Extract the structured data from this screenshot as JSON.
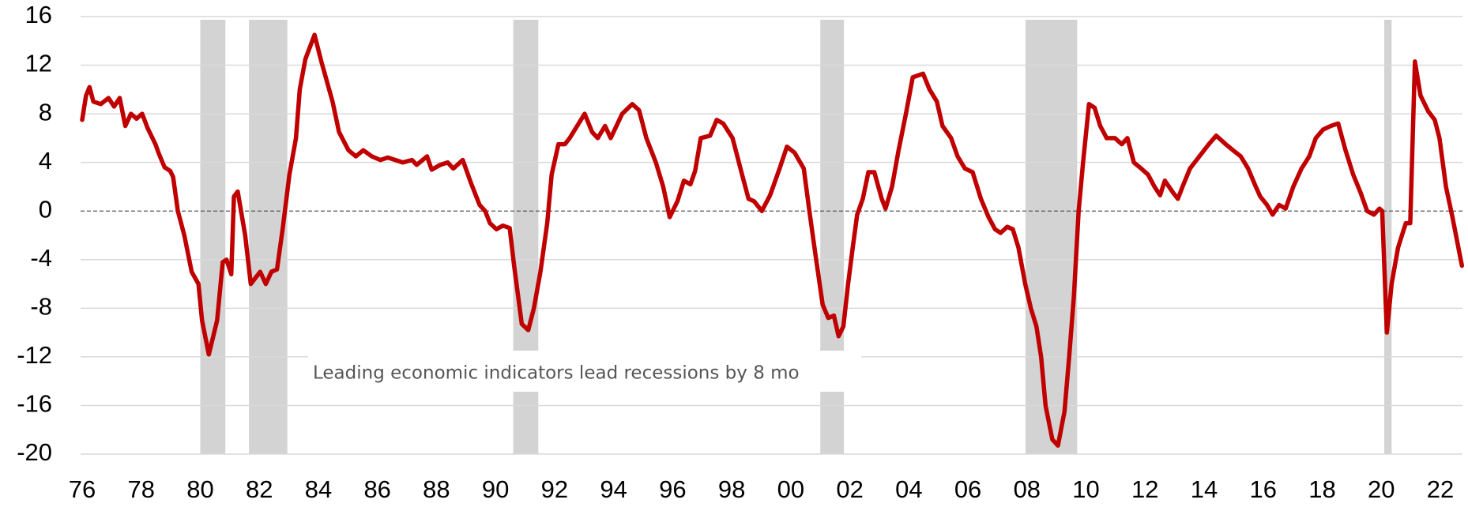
{
  "chart_data": {
    "type": "line",
    "annotation": "Leading economic indicators lead recessions by 8 mo",
    "color": "#c00000",
    "shade_color": "#d3d3d3",
    "grid": true,
    "xlim": [
      1976,
      2022.75
    ],
    "ylim": [
      -20,
      16
    ],
    "yticks": [
      -20,
      -16,
      -12,
      -8,
      -4,
      0,
      4,
      8,
      12,
      16
    ],
    "xticks": [
      {
        "value": 1976,
        "label": "76"
      },
      {
        "value": 1978,
        "label": "78"
      },
      {
        "value": 1980,
        "label": "80"
      },
      {
        "value": 1982,
        "label": "82"
      },
      {
        "value": 1984,
        "label": "84"
      },
      {
        "value": 1986,
        "label": "86"
      },
      {
        "value": 1988,
        "label": "88"
      },
      {
        "value": 1990,
        "label": "90"
      },
      {
        "value": 1992,
        "label": "92"
      },
      {
        "value": 1994,
        "label": "94"
      },
      {
        "value": 1996,
        "label": "96"
      },
      {
        "value": 1998,
        "label": "98"
      },
      {
        "value": 2000,
        "label": "00"
      },
      {
        "value": 2002,
        "label": "02"
      },
      {
        "value": 2004,
        "label": "04"
      },
      {
        "value": 2006,
        "label": "06"
      },
      {
        "value": 2008,
        "label": "08"
      },
      {
        "value": 2010,
        "label": "10"
      },
      {
        "value": 2012,
        "label": "12"
      },
      {
        "value": 2014,
        "label": "14"
      },
      {
        "value": 2016,
        "label": "16"
      },
      {
        "value": 2018,
        "label": "18"
      },
      {
        "value": 2020,
        "label": "20"
      },
      {
        "value": 2022,
        "label": "22"
      }
    ],
    "recessions": [
      [
        1980.0,
        1980.85
      ],
      [
        1981.65,
        1982.95
      ],
      [
        1990.6,
        1991.45
      ],
      [
        2001.0,
        2001.8
      ],
      [
        2007.95,
        2009.7
      ],
      [
        2020.1,
        2020.35
      ]
    ],
    "x": [
      1976.0,
      1976.13,
      1976.25,
      1976.38,
      1976.63,
      1976.89,
      1977.08,
      1977.27,
      1977.46,
      1977.65,
      1977.84,
      1978.03,
      1978.22,
      1978.48,
      1978.6,
      1978.79,
      1978.98,
      1979.08,
      1979.24,
      1979.46,
      1979.71,
      1979.94,
      1980.06,
      1980.29,
      1980.57,
      1980.76,
      1980.89,
      1981.05,
      1981.14,
      1981.27,
      1981.52,
      1981.71,
      1982.03,
      1982.22,
      1982.41,
      1982.6,
      1982.79,
      1983.02,
      1983.24,
      1983.37,
      1983.56,
      1983.87,
      1984.1,
      1984.48,
      1984.7,
      1985.02,
      1985.27,
      1985.52,
      1985.81,
      1986.1,
      1986.35,
      1986.86,
      1987.17,
      1987.33,
      1987.68,
      1987.84,
      1988.13,
      1988.38,
      1988.57,
      1988.89,
      1989.17,
      1989.46,
      1989.65,
      1989.81,
      1990.03,
      1990.25,
      1990.48,
      1990.63,
      1990.89,
      1991.11,
      1991.3,
      1991.52,
      1991.75,
      1991.9,
      1992.13,
      1992.35,
      1992.51,
      1993.02,
      1993.27,
      1993.46,
      1993.71,
      1993.9,
      1994.29,
      1994.63,
      1994.86,
      1995.11,
      1995.43,
      1995.68,
      1995.9,
      1996.16,
      1996.38,
      1996.6,
      1996.76,
      1996.95,
      1997.27,
      1997.49,
      1997.71,
      1998.03,
      1998.35,
      1998.57,
      1998.76,
      1999.02,
      1999.3,
      1999.62,
      1999.87,
      2000.13,
      2000.44,
      2000.63,
      2000.83,
      2001.08,
      2001.27,
      2001.46,
      2001.62,
      2001.78,
      2001.94,
      2002.1,
      2002.25,
      2002.44,
      2002.63,
      2002.83,
      2003.08,
      2003.21,
      2003.43,
      2003.65,
      2003.9,
      2004.13,
      2004.48,
      2004.7,
      2004.95,
      2005.14,
      2005.43,
      2005.65,
      2005.9,
      2006.16,
      2006.44,
      2006.7,
      2006.92,
      2007.11,
      2007.33,
      2007.52,
      2007.71,
      2007.94,
      2008.13,
      2008.32,
      2008.48,
      2008.63,
      2008.86,
      2009.05,
      2009.27,
      2009.43,
      2009.59,
      2009.75,
      2009.9,
      2010.1,
      2010.29,
      2010.48,
      2010.7,
      2010.98,
      2011.21,
      2011.4,
      2011.62,
      2011.87,
      2012.1,
      2012.32,
      2012.51,
      2012.67,
      2012.95,
      2013.11,
      2013.27,
      2013.52,
      2013.84,
      2014.16,
      2014.41,
      2014.73,
      2014.98,
      2015.24,
      2015.49,
      2015.75,
      2015.9,
      2016.13,
      2016.32,
      2016.54,
      2016.76,
      2017.02,
      2017.3,
      2017.56,
      2017.78,
      2018.03,
      2018.29,
      2018.54,
      2018.79,
      2019.05,
      2019.3,
      2019.52,
      2019.75,
      2019.94,
      2020.03,
      2020.19,
      2020.35,
      2020.57,
      2020.83,
      2020.98,
      2021.14,
      2021.33,
      2021.59,
      2021.81,
      2021.97,
      2022.19,
      2022.41,
      2022.57,
      2022.73
    ],
    "values": [
      7.5,
      9.5,
      10.2,
      9.0,
      8.8,
      9.3,
      8.6,
      9.3,
      7.0,
      8.0,
      7.6,
      8.0,
      6.8,
      5.5,
      4.7,
      3.6,
      3.3,
      2.8,
      0.0,
      -2.0,
      -5.0,
      -6.0,
      -9.0,
      -11.8,
      -9.0,
      -4.2,
      -4.0,
      -5.2,
      1.2,
      1.6,
      -2.0,
      -6.0,
      -5.0,
      -6.0,
      -5.0,
      -4.8,
      -1.5,
      3.0,
      6.0,
      10.0,
      12.5,
      14.5,
      12.3,
      9.0,
      6.5,
      5.0,
      4.5,
      5.0,
      4.5,
      4.2,
      4.4,
      4.0,
      4.2,
      3.8,
      4.5,
      3.4,
      3.8,
      4.0,
      3.5,
      4.2,
      2.3,
      0.5,
      0.0,
      -1.0,
      -1.5,
      -1.2,
      -1.4,
      -4.5,
      -9.3,
      -9.8,
      -8.0,
      -5.0,
      -1.0,
      3.0,
      5.5,
      5.5,
      6.0,
      8.0,
      6.5,
      6.0,
      7.0,
      6.0,
      8.0,
      8.8,
      8.3,
      6.0,
      4.0,
      2.0,
      -0.5,
      0.8,
      2.5,
      2.2,
      3.3,
      6.0,
      6.2,
      7.5,
      7.2,
      6.0,
      3.0,
      1.0,
      0.8,
      0.0,
      1.3,
      3.5,
      5.3,
      4.8,
      3.5,
      0.0,
      -3.5,
      -7.7,
      -8.8,
      -8.6,
      -10.3,
      -9.5,
      -6.0,
      -3.0,
      -0.3,
      1.0,
      3.2,
      3.2,
      1.0,
      0.2,
      2.0,
      5.0,
      8.0,
      11.0,
      11.3,
      10.0,
      9.0,
      7.0,
      6.0,
      4.5,
      3.5,
      3.2,
      1.0,
      -0.5,
      -1.5,
      -1.8,
      -1.3,
      -1.5,
      -3.0,
      -6.0,
      -8.0,
      -9.5,
      -12.0,
      -16.0,
      -18.8,
      -19.3,
      -16.5,
      -12.0,
      -7.0,
      0.0,
      4.0,
      8.8,
      8.5,
      7.0,
      6.0,
      6.0,
      5.5,
      6.0,
      4.0,
      3.5,
      3.0,
      2.0,
      1.3,
      2.5,
      1.5,
      1.0,
      2.0,
      3.5,
      4.5,
      5.5,
      6.2,
      5.5,
      5.0,
      4.5,
      3.5,
      2.0,
      1.2,
      0.5,
      -0.3,
      0.5,
      0.2,
      2.0,
      3.5,
      4.5,
      6.0,
      6.7,
      7.0,
      7.2,
      5.0,
      3.0,
      1.5,
      0.0,
      -0.3,
      0.2,
      0.0,
      -10.0,
      -6.0,
      -3.0,
      -1.0,
      -1.0,
      12.3,
      9.5,
      8.2,
      7.5,
      6.0,
      2.0,
      -0.5,
      -2.5,
      -4.5
    ]
  }
}
